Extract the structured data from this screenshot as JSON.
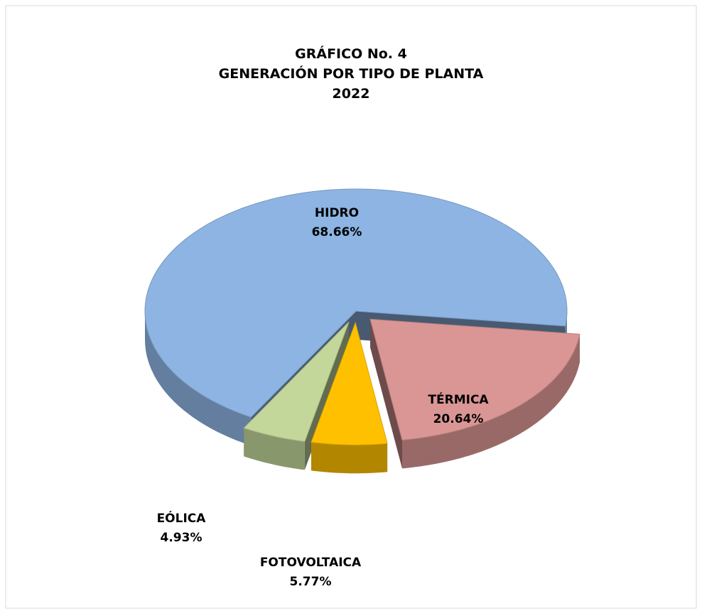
{
  "chart_data": {
    "type": "pie",
    "title": [
      "GRÁFICO  No. 4",
      "GENERACIÓN POR TIPO DE PLANTA",
      "2022"
    ],
    "categories": [
      "HIDRO",
      "TÉRMICA",
      "FOTOVOLTAICA",
      "EÓLICA"
    ],
    "values": [
      68.66,
      20.64,
      5.77,
      4.93
    ],
    "value_labels": [
      "68.66%",
      "20.64%",
      "5.77%",
      "4.93%"
    ],
    "colors": [
      "#8db4e2",
      "#da9694",
      "#ffc000",
      "#c4d79b"
    ]
  }
}
